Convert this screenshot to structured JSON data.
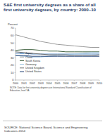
{
  "chart_data": {
    "type": "line",
    "title": "S&E first university degrees as a share of all first university degrees, by country: 2000–10",
    "y_label": "Percent",
    "x": [
      2000,
      2001,
      2002,
      2003,
      2004,
      2005,
      2006,
      2007,
      2008,
      2009,
      2010
    ],
    "xticks": [
      2000,
      2001,
      2002,
      2003,
      2004,
      2005,
      2006,
      2007,
      2008,
      2009,
      2010
    ],
    "xlim": [
      2000,
      2010
    ],
    "ylim": [
      0,
      70
    ],
    "yticks": [
      0,
      10,
      20,
      30,
      40,
      50,
      60,
      70
    ],
    "legend": "lower left",
    "grid": false,
    "series": [
      {
        "name": "Japan",
        "color": "#5b8fc7",
        "values": [
          36,
          36,
          35,
          35,
          35,
          35,
          35,
          35,
          35,
          35,
          35
        ]
      },
      {
        "name": "China",
        "color": "#9a9a9a",
        "values": [
          61,
          58,
          55,
          52,
          50,
          48,
          47,
          46,
          45,
          44,
          44
        ]
      },
      {
        "name": "South Korea",
        "color": "#3d5f3d",
        "values": [
          40,
          41,
          41,
          40,
          39,
          39,
          38,
          38,
          38,
          38,
          38
        ]
      },
      {
        "name": "Germany",
        "color": "#9cc3e0",
        "values": [
          33,
          32,
          31,
          31,
          32,
          33,
          34,
          35,
          36,
          37,
          37
        ]
      },
      {
        "name": "United Kingdom",
        "color": "#6f6f6f",
        "values": [
          38,
          37,
          36,
          35,
          34,
          34,
          34,
          33,
          33,
          33,
          34
        ]
      },
      {
        "name": "United States",
        "color": "#1f3f73",
        "values": [
          33,
          33,
          32,
          32,
          32,
          32,
          32,
          32,
          32,
          32,
          32
        ]
      }
    ],
    "note": "NOTE: Data for first university degrees are International Standard Classification of Education, level 5A.",
    "source": "SOURCE: National Science Board, Science and Engineering Indicators 2014"
  }
}
